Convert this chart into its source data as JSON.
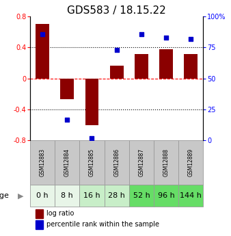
{
  "title": "GDS583 / 18.15.22",
  "samples": [
    "GSM12883",
    "GSM12884",
    "GSM12885",
    "GSM12886",
    "GSM12887",
    "GSM12888",
    "GSM12889"
  ],
  "ages": [
    "0 h",
    "8 h",
    "16 h",
    "28 h",
    "52 h",
    "96 h",
    "144 h"
  ],
  "log_ratio": [
    0.7,
    -0.27,
    -0.6,
    0.17,
    0.32,
    0.38,
    0.32
  ],
  "percentile": [
    86,
    17,
    2,
    73,
    86,
    83,
    82
  ],
  "bar_color": "#8B0000",
  "dot_color": "#0000CC",
  "ylim_left": [
    -0.8,
    0.8
  ],
  "ylim_right": [
    0,
    100
  ],
  "yticks_left": [
    -0.8,
    -0.4,
    0,
    0.4,
    0.8
  ],
  "yticks_right": [
    0,
    25,
    50,
    75,
    100
  ],
  "age_colors": [
    "#E8F5E8",
    "#E8F5E8",
    "#C8EEC8",
    "#C8EEC8",
    "#66DD66",
    "#66DD66",
    "#66DD66"
  ],
  "legend_bar_label": "log ratio",
  "legend_dot_label": "percentile rank within the sample",
  "title_fontsize": 11,
  "tick_fontsize": 7,
  "sample_fontsize": 5.5,
  "age_label_fontsize": 8,
  "legend_fontsize": 7,
  "age_row_label": "age"
}
